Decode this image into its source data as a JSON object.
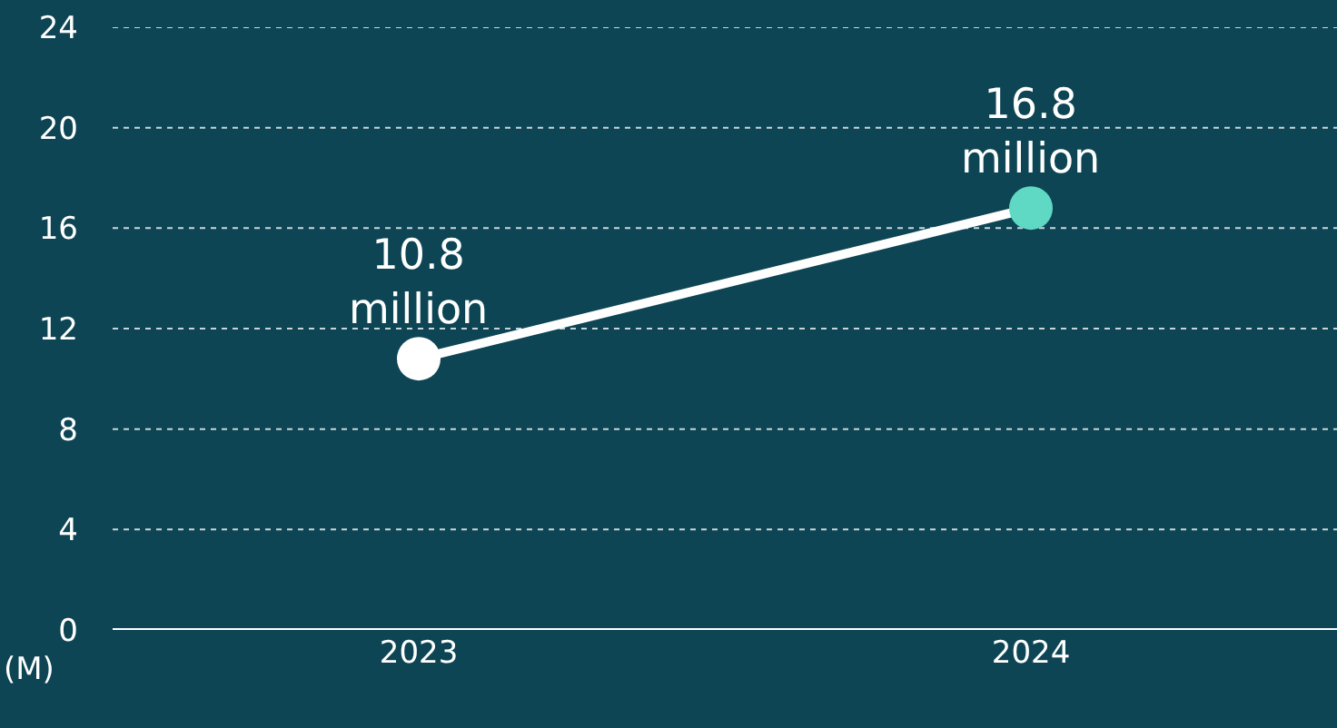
{
  "chart_data": {
    "type": "line",
    "categories": [
      "2023",
      "2024"
    ],
    "series": [
      {
        "color": "#ffffff",
        "colors": [
          "#ffffff",
          "#5fd8c4"
        ],
        "values": [
          10.8,
          16.8
        ]
      }
    ],
    "annotations": [
      {
        "text": "10.8\nmillion",
        "x": "2023",
        "y": 10.8
      },
      {
        "text": "16.8\nmillion",
        "x": "2024",
        "y": 16.8
      }
    ],
    "ylabel": "(M)",
    "ylim": [
      0,
      24
    ],
    "yticks": [
      0,
      4,
      8,
      12,
      16,
      20,
      24
    ],
    "grid": "y",
    "marker": "circle",
    "line_style": "solid"
  }
}
